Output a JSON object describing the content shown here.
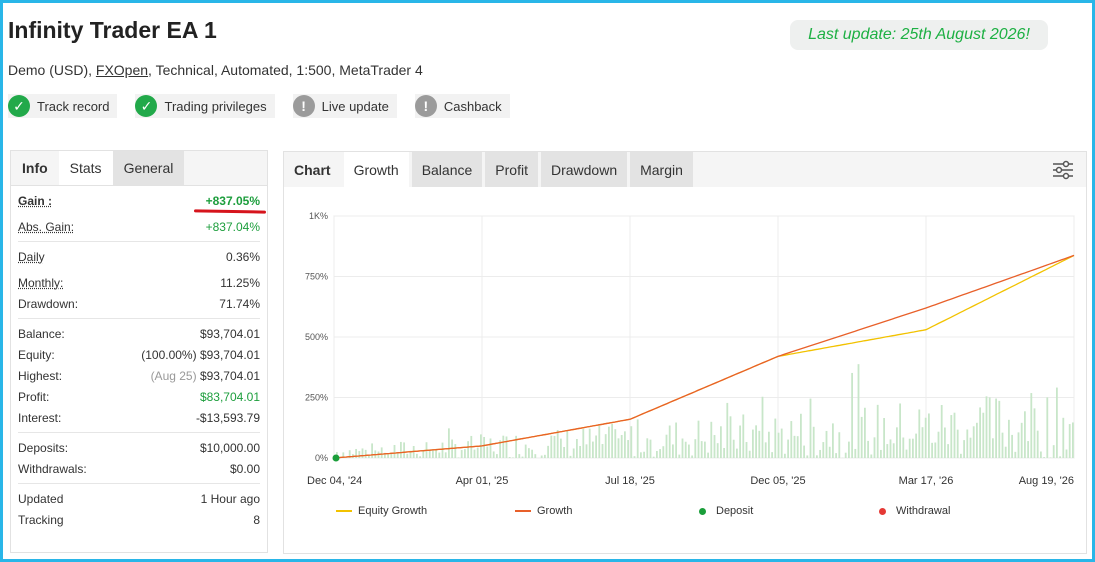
{
  "header": {
    "title": "Infinity Trader EA 1",
    "subtitle_prefix": "Demo (USD), ",
    "broker": "FXOpen",
    "subtitle_suffix": ", Technical, Automated, 1:500, MetaTrader 4",
    "last_update": "Last update: 25th August 2026!"
  },
  "badges": [
    {
      "label": "Track record",
      "status": "verified"
    },
    {
      "label": "Trading privileges",
      "status": "verified"
    },
    {
      "label": "Live update",
      "status": "not-verified"
    },
    {
      "label": "Cashback",
      "status": "not-verified"
    }
  ],
  "left_tabs": [
    "Info",
    "Stats",
    "General"
  ],
  "stats": {
    "gain_label": "Gain :",
    "gain": "+837.05%",
    "abs_gain_label": "Abs. Gain:",
    "abs_gain": "+837.04%",
    "daily_label": "Daily",
    "daily": "0.36%",
    "monthly_label": "Monthly:",
    "monthly": "11.25%",
    "drawdown_label": "Drawdown:",
    "drawdown": "71.74%",
    "balance_label": "Balance:",
    "balance": "$93,704.01",
    "equity_label": "Equity:",
    "equity_pct": "(100.00%)",
    "equity": "$93,704.01",
    "highest_label": "Highest:",
    "highest_date": "(Aug 25)",
    "highest": "$93,704.01",
    "profit_label": "Profit:",
    "profit": "$83,704.01",
    "interest_label": "Interest:",
    "interest": "-$13,593.79",
    "deposits_label": "Deposits:",
    "deposits": "$10,000.00",
    "withdrawals_label": "Withdrawals:",
    "withdrawals": "$0.00",
    "updated_label": "Updated",
    "updated": "1 Hour ago",
    "tracking_label": "Tracking",
    "tracking": "8"
  },
  "chart_tabs": [
    "Chart",
    "Growth",
    "Balance",
    "Profit",
    "Drawdown",
    "Margin"
  ],
  "colors": {
    "growth": "#e8602a",
    "equity": "#f2c200",
    "bars": "#c8e6c9",
    "deposit": "#1a9e3a",
    "withdrawal": "#e53935"
  },
  "chart_data": {
    "type": "line",
    "y_ticks": [
      "0%",
      "250%",
      "500%",
      "750%",
      "1K%"
    ],
    "ylim": [
      0,
      1000
    ],
    "x_ticks": [
      "Dec 04, '24",
      "Apr 01, '25",
      "Jul 18, '25",
      "Dec 05, '25",
      "Mar 17, '26",
      "Aug 19, '26"
    ],
    "grid": true,
    "legend_position": "bottom",
    "series": [
      {
        "name": "Growth",
        "x": [
          "Dec 04, '24",
          "Apr 01, '25",
          "Jul 18, '25",
          "Dec 05, '25",
          "Mar 17, '26",
          "Aug 19, '26"
        ],
        "values": [
          0,
          50,
          160,
          420,
          620,
          837
        ]
      },
      {
        "name": "Equity Growth",
        "x": [
          "Dec 04, '24",
          "Apr 01, '25",
          "Jul 18, '25",
          "Dec 05, '25",
          "Mar 17, '26",
          "Aug 19, '26"
        ],
        "values": [
          0,
          50,
          160,
          420,
          530,
          837
        ]
      }
    ],
    "legend": [
      "Equity Growth",
      "Growth",
      "Deposit",
      "Withdrawal"
    ]
  }
}
